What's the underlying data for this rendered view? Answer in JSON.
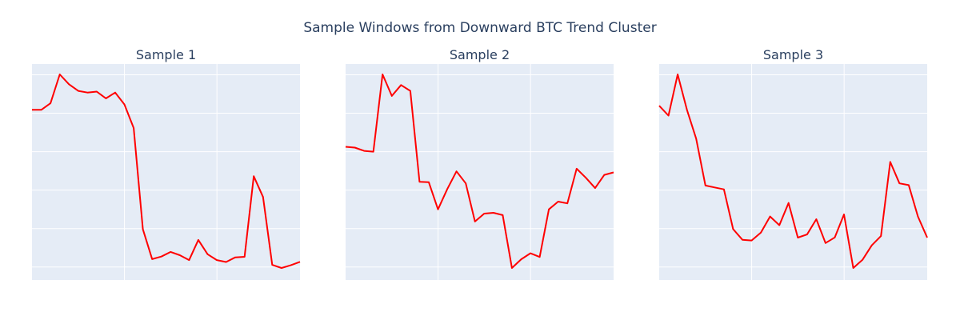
{
  "title": "Sample Windows from Downward BTC Trend Cluster",
  "colors": {
    "line": "#ff0000",
    "plot_bg": "#e5ecf6",
    "grid": "#ffffff",
    "text": "#2a3f5f",
    "paper": "#ffffff"
  },
  "chart_data": [
    {
      "type": "line",
      "title": "Sample 1",
      "grid": true,
      "x_tick_labels_shown": false,
      "y_tick_labels_shown": false,
      "series": [
        {
          "values": [
            0.817,
            0.817,
            0.851,
            1.0,
            0.949,
            0.915,
            0.906,
            0.911,
            0.876,
            0.906,
            0.845,
            0.723,
            0.2,
            0.046,
            0.059,
            0.083,
            0.066,
            0.041,
            0.145,
            0.071,
            0.041,
            0.031,
            0.055,
            0.058,
            0.474,
            0.367,
            0.016,
            0.0,
            0.014,
            0.032
          ]
        }
      ]
    },
    {
      "type": "line",
      "title": "Sample 2",
      "grid": true,
      "x_tick_labels_shown": false,
      "y_tick_labels_shown": false,
      "series": [
        {
          "values": [
            0.626,
            0.622,
            0.605,
            0.601,
            1.0,
            0.889,
            0.945,
            0.915,
            0.445,
            0.443,
            0.303,
            0.408,
            0.499,
            0.437,
            0.24,
            0.281,
            0.285,
            0.273,
            0.0,
            0.045,
            0.076,
            0.057,
            0.303,
            0.343,
            0.334,
            0.513,
            0.466,
            0.413,
            0.481,
            0.494
          ]
        }
      ]
    },
    {
      "type": "line",
      "title": "Sample 3",
      "grid": true,
      "x_tick_labels_shown": false,
      "y_tick_labels_shown": false,
      "series": [
        {
          "values": [
            0.838,
            0.787,
            1.0,
            0.817,
            0.668,
            0.426,
            0.416,
            0.406,
            0.201,
            0.146,
            0.142,
            0.183,
            0.266,
            0.221,
            0.336,
            0.157,
            0.173,
            0.252,
            0.129,
            0.158,
            0.277,
            0.0,
            0.042,
            0.117,
            0.165,
            0.548,
            0.437,
            0.428,
            0.266,
            0.157
          ]
        }
      ]
    }
  ]
}
